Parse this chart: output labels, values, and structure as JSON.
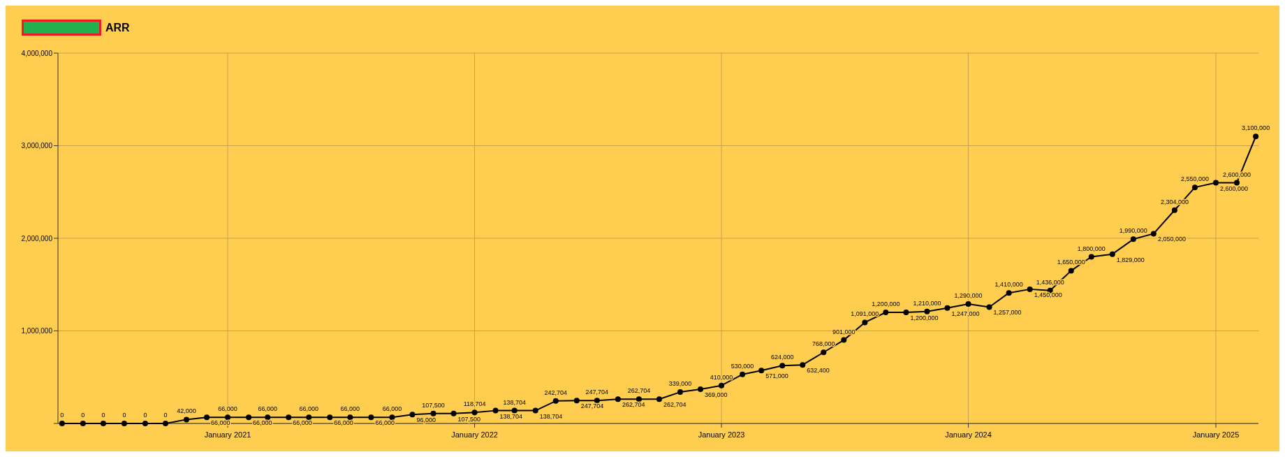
{
  "chart_data": {
    "type": "line",
    "x": [
      "2020-05",
      "2020-06",
      "2020-07",
      "2020-08",
      "2020-09",
      "2020-10",
      "2020-11",
      "2020-12",
      "2021-01",
      "2021-02",
      "2021-03",
      "2021-04",
      "2021-05",
      "2021-06",
      "2021-07",
      "2021-08",
      "2021-09",
      "2021-10",
      "2021-11",
      "2021-12",
      "2022-01",
      "2022-02",
      "2022-03",
      "2022-04",
      "2022-05",
      "2022-06",
      "2022-07",
      "2022-08",
      "2022-09",
      "2022-10",
      "2022-11",
      "2022-12",
      "2023-01",
      "2023-02",
      "2023-03",
      "2023-04",
      "2023-05",
      "2023-06",
      "2023-07",
      "2023-08",
      "2023-09",
      "2023-10",
      "2023-11",
      "2023-12",
      "2024-01",
      "2024-02",
      "2024-03",
      "2024-04",
      "2024-05",
      "2024-06",
      "2024-07",
      "2024-08",
      "2024-09",
      "2024-10",
      "2024-11",
      "2024-12",
      "2025-01",
      "2025-02",
      "2025-03"
    ],
    "series": [
      {
        "name": "ARR",
        "color": "#000000",
        "values": [
          0,
          0,
          0,
          0,
          0,
          0,
          42000,
          66000,
          66000,
          66000,
          66000,
          66000,
          66000,
          66000,
          66000,
          66000,
          66000,
          96000,
          107500,
          107500,
          118704,
          138704,
          138704,
          138704,
          242704,
          247704,
          247704,
          262704,
          262704,
          262704,
          339000,
          369000,
          410000,
          530000,
          571000,
          624000,
          632400,
          768000,
          901000,
          1091000,
          1200000,
          1200000,
          1210000,
          1247000,
          1290000,
          1257000,
          1410000,
          1450000,
          1436000,
          1650000,
          1800000,
          1829000,
          1990000,
          2050000,
          2304000,
          2550000,
          2600000,
          2600000,
          3100000
        ],
        "value_labels": [
          "0",
          "0",
          "0",
          "0",
          "0",
          "0",
          "42,000",
          "66,000",
          "66,000",
          "66,000",
          "66,000",
          "66,000",
          "66,000",
          "66,000",
          "66,000",
          "66,000",
          "66,000",
          "96,000",
          "107,500",
          "107,500",
          "118,704",
          "138,704",
          "138,704",
          "138,704",
          "242,704",
          "247,704",
          "247,704",
          "262,704",
          "262,704",
          "262,704",
          "339,000",
          "369,000",
          "410,000",
          "530,000",
          "571,000",
          "624,000",
          "632,400",
          "768,000",
          "901,000",
          "1,091,000",
          "1,200,000",
          "1,200,000",
          "1,210,000",
          "1,247,000",
          "1,290,000",
          "1,257,000",
          "1,410,000",
          "1,450,000",
          "1,436,000",
          "1,650,000",
          "1,800,000",
          "1,829,000",
          "1,990,000",
          "2,050,000",
          "2,304,000",
          "2,550,000",
          "2,600,000",
          "2,600,000",
          "3,100,000"
        ]
      }
    ],
    "xlim": [
      "2020-04-25",
      "2025-03-05"
    ],
    "xticks": [
      {
        "value": "2021-01",
        "label": "January 2021"
      },
      {
        "value": "2022-01",
        "label": "January 2022"
      },
      {
        "value": "2023-01",
        "label": "January 2023"
      },
      {
        "value": "2024-01",
        "label": "January 2024"
      },
      {
        "value": "2025-01",
        "label": "January 2025"
      }
    ],
    "ylim": [
      0,
      4000000
    ],
    "yticks": [
      {
        "value": 0,
        "label": null
      },
      {
        "value": 1000000,
        "label": "1,000,000"
      },
      {
        "value": 2000000,
        "label": "2,000,000"
      },
      {
        "value": 3000000,
        "label": "3,000,000"
      },
      {
        "value": 4000000,
        "label": "4,000,000"
      }
    ],
    "grid": true,
    "legend": "top left",
    "marker": "circle",
    "line_style": "solid"
  }
}
